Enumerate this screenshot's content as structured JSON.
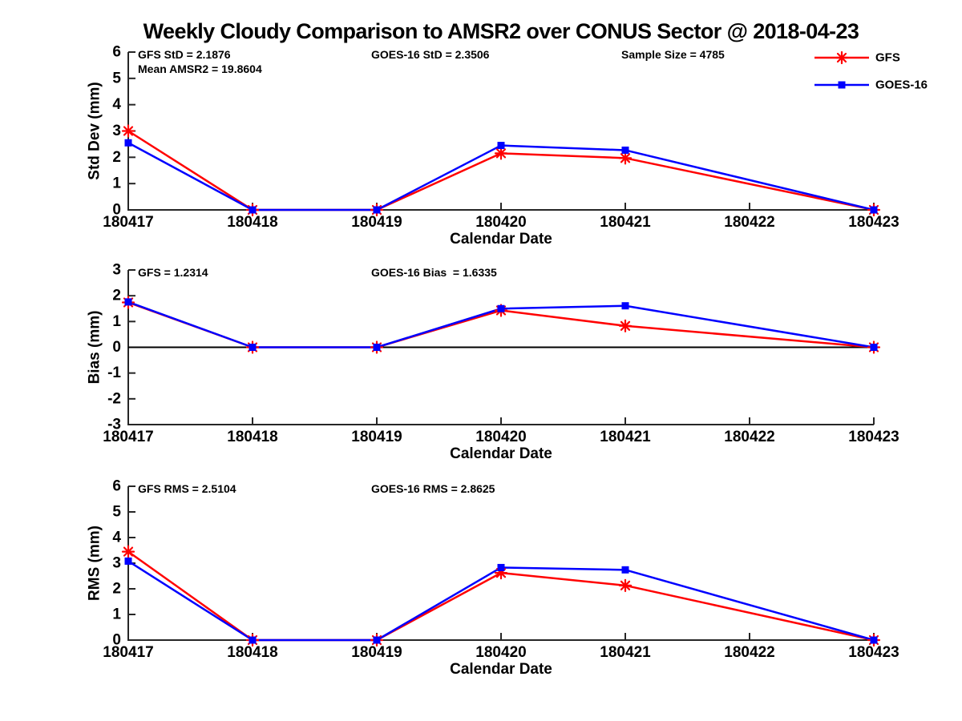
{
  "title": "Weekly Cloudy Comparison to AMSR2 over CONUS Sector @ 2018-04-23",
  "colors": {
    "gfs": "#ff0000",
    "goes16": "#0000ff",
    "axis": "#262626",
    "text": "#000000",
    "zero_line": "#000000",
    "background": "#ffffff"
  },
  "legend": {
    "position": "top-right",
    "items": [
      {
        "label": "GFS",
        "color": "#ff0000",
        "marker": "asterisk"
      },
      {
        "label": "GOES-16",
        "color": "#0000ff",
        "marker": "square"
      }
    ]
  },
  "chart_data": [
    {
      "type": "line",
      "id": "std-dev",
      "ylabel": "Std Dev (mm)",
      "xlabel": "Calendar Date",
      "ylim": [
        0,
        6
      ],
      "yticks": [
        0,
        1,
        2,
        3,
        4,
        5,
        6
      ],
      "categories": [
        "180417",
        "180418",
        "180419",
        "180420",
        "180421",
        "180422",
        "180423"
      ],
      "annotations": [
        {
          "text": "GFS StD = 2.1876",
          "col": 0,
          "row": 0
        },
        {
          "text": "Mean AMSR2 = 19.8604",
          "col": 0,
          "row": 1
        },
        {
          "text": "GOES-16 StD = 2.3506",
          "col": 1,
          "row": 0
        },
        {
          "text": "Sample Size = 4785",
          "col": 2,
          "row": 0
        }
      ],
      "series": [
        {
          "name": "GFS",
          "color": "#ff0000",
          "marker": "asterisk",
          "x": [
            "180417",
            "180418",
            "180419",
            "180420",
            "180421",
            "180423"
          ],
          "values": [
            3.0,
            0,
            0,
            2.15,
            1.97,
            0
          ]
        },
        {
          "name": "GOES-16",
          "color": "#0000ff",
          "marker": "square",
          "x": [
            "180417",
            "180418",
            "180419",
            "180420",
            "180421",
            "180423"
          ],
          "values": [
            2.55,
            0,
            0,
            2.45,
            2.27,
            0
          ]
        }
      ]
    },
    {
      "type": "line",
      "id": "bias",
      "ylabel": "Bias (mm)",
      "xlabel": "Calendar Date",
      "ylim": [
        -3,
        3
      ],
      "yticks": [
        -3,
        -2,
        -1,
        0,
        1,
        2,
        3
      ],
      "zero_line": true,
      "categories": [
        "180417",
        "180418",
        "180419",
        "180420",
        "180421",
        "180422",
        "180423"
      ],
      "annotations": [
        {
          "text": "GFS = 1.2314",
          "col": 0,
          "row": 0
        },
        {
          "text": "GOES-16 Bias  = 1.6335",
          "col": 1,
          "row": 0
        }
      ],
      "series": [
        {
          "name": "GFS",
          "color": "#ff0000",
          "marker": "asterisk",
          "x": [
            "180417",
            "180418",
            "180419",
            "180420",
            "180421",
            "180423"
          ],
          "values": [
            1.74,
            0,
            0,
            1.43,
            0.83,
            0
          ]
        },
        {
          "name": "GOES-16",
          "color": "#0000ff",
          "marker": "square",
          "x": [
            "180417",
            "180418",
            "180419",
            "180420",
            "180421",
            "180423"
          ],
          "values": [
            1.76,
            0,
            0,
            1.5,
            1.61,
            0
          ]
        }
      ]
    },
    {
      "type": "line",
      "id": "rms",
      "ylabel": "RMS (mm)",
      "xlabel": "Calendar Date",
      "ylim": [
        0,
        6
      ],
      "yticks": [
        0,
        1,
        2,
        3,
        4,
        5,
        6
      ],
      "categories": [
        "180417",
        "180418",
        "180419",
        "180420",
        "180421",
        "180422",
        "180423"
      ],
      "annotations": [
        {
          "text": "GFS RMS = 2.5104",
          "col": 0,
          "row": 0
        },
        {
          "text": "GOES-16 RMS = 2.8625",
          "col": 1,
          "row": 0
        }
      ],
      "series": [
        {
          "name": "GFS",
          "color": "#ff0000",
          "marker": "asterisk",
          "x": [
            "180417",
            "180418",
            "180419",
            "180420",
            "180421",
            "180423"
          ],
          "values": [
            3.45,
            0,
            0,
            2.62,
            2.13,
            0
          ]
        },
        {
          "name": "GOES-16",
          "color": "#0000ff",
          "marker": "square",
          "x": [
            "180417",
            "180418",
            "180419",
            "180420",
            "180421",
            "180423"
          ],
          "values": [
            3.08,
            0,
            0,
            2.83,
            2.74,
            0
          ]
        }
      ]
    }
  ]
}
